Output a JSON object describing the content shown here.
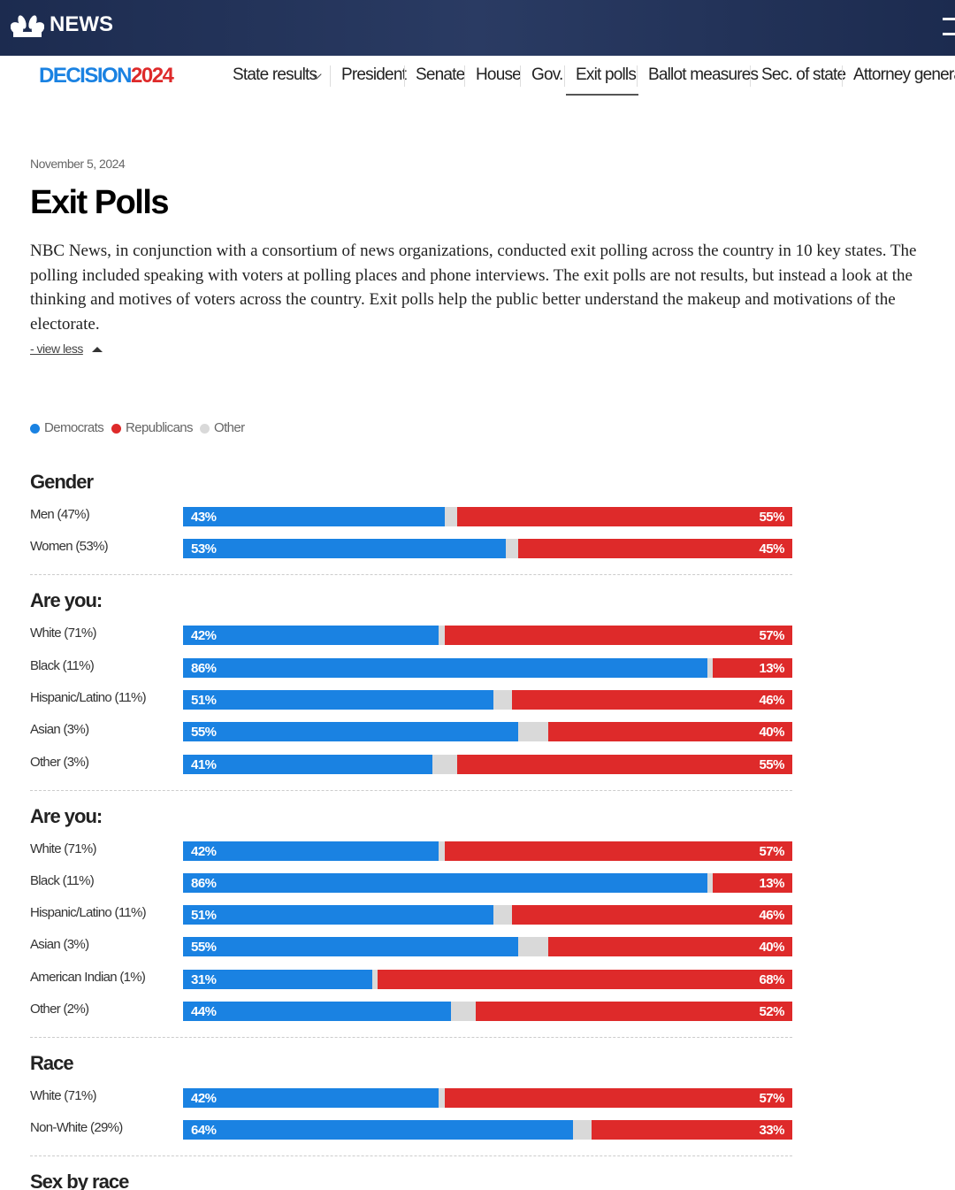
{
  "header": {
    "brand": "NEWS",
    "logo_text": "DECISION",
    "logo_year": "2024"
  },
  "nav": [
    "State results",
    "President",
    "Senate",
    "House",
    "Gov.",
    "Exit polls",
    "Ballot measures",
    "Sec. of state",
    "Attorney general"
  ],
  "article": {
    "date": "November 5, 2024",
    "title": "Exit Polls",
    "body": "NBC News, in conjunction with a consortium of news organizations, conducted exit polling across the country in 10 key states. The polling included speaking with voters at polling places and phone interviews. The exit polls are not results, but instead a look at the thinking and motives of voters across the country. Exit polls help the public better understand the makeup and motivations of the electorate.",
    "toggle": "- view less"
  },
  "legend": [
    "Democrats",
    "Republicans",
    "Other"
  ],
  "sections": [
    {
      "title": "Gender",
      "rows": [
        {
          "label": "Men (47%)",
          "dem": 43,
          "dem_label": "43%",
          "rep": 55,
          "rep_label": "55%"
        },
        {
          "label": "Women (53%)",
          "dem": 53,
          "dem_label": "53%",
          "rep": 45,
          "rep_label": "45%"
        }
      ]
    },
    {
      "title": "Are you:",
      "rows": [
        {
          "label": "White (71%)",
          "dem": 42,
          "dem_label": "42%",
          "rep": 57,
          "rep_label": "57%"
        },
        {
          "label": "Black (11%)",
          "dem": 86,
          "dem_label": "86%",
          "rep": 13,
          "rep_label": "13%"
        },
        {
          "label": "Hispanic/Latino (11%)",
          "dem": 51,
          "dem_label": "51%",
          "rep": 46,
          "rep_label": "46%"
        },
        {
          "label": "Asian (3%)",
          "dem": 55,
          "dem_label": "55%",
          "rep": 40,
          "rep_label": "40%"
        },
        {
          "label": "Other (3%)",
          "dem": 41,
          "dem_label": "41%",
          "rep": 55,
          "rep_label": "55%"
        }
      ]
    },
    {
      "title": "Are you:",
      "rows": [
        {
          "label": "White (71%)",
          "dem": 42,
          "dem_label": "42%",
          "rep": 57,
          "rep_label": "57%"
        },
        {
          "label": "Black (11%)",
          "dem": 86,
          "dem_label": "86%",
          "rep": 13,
          "rep_label": "13%"
        },
        {
          "label": "Hispanic/Latino (11%)",
          "dem": 51,
          "dem_label": "51%",
          "rep": 46,
          "rep_label": "46%"
        },
        {
          "label": "Asian (3%)",
          "dem": 55,
          "dem_label": "55%",
          "rep": 40,
          "rep_label": "40%"
        },
        {
          "label": "American Indian (1%)",
          "dem": 31,
          "dem_label": "31%",
          "rep": 68,
          "rep_label": "68%"
        },
        {
          "label": "Other (2%)",
          "dem": 44,
          "dem_label": "44%",
          "rep": 52,
          "rep_label": "52%"
        }
      ]
    },
    {
      "title": "Race",
      "rows": [
        {
          "label": "White (71%)",
          "dem": 42,
          "dem_label": "42%",
          "rep": 57,
          "rep_label": "57%"
        },
        {
          "label": "Non-White (29%)",
          "dem": 64,
          "dem_label": "64%",
          "rep": 33,
          "rep_label": "33%"
        }
      ]
    },
    {
      "title": "Sex by race",
      "rows": []
    }
  ]
}
